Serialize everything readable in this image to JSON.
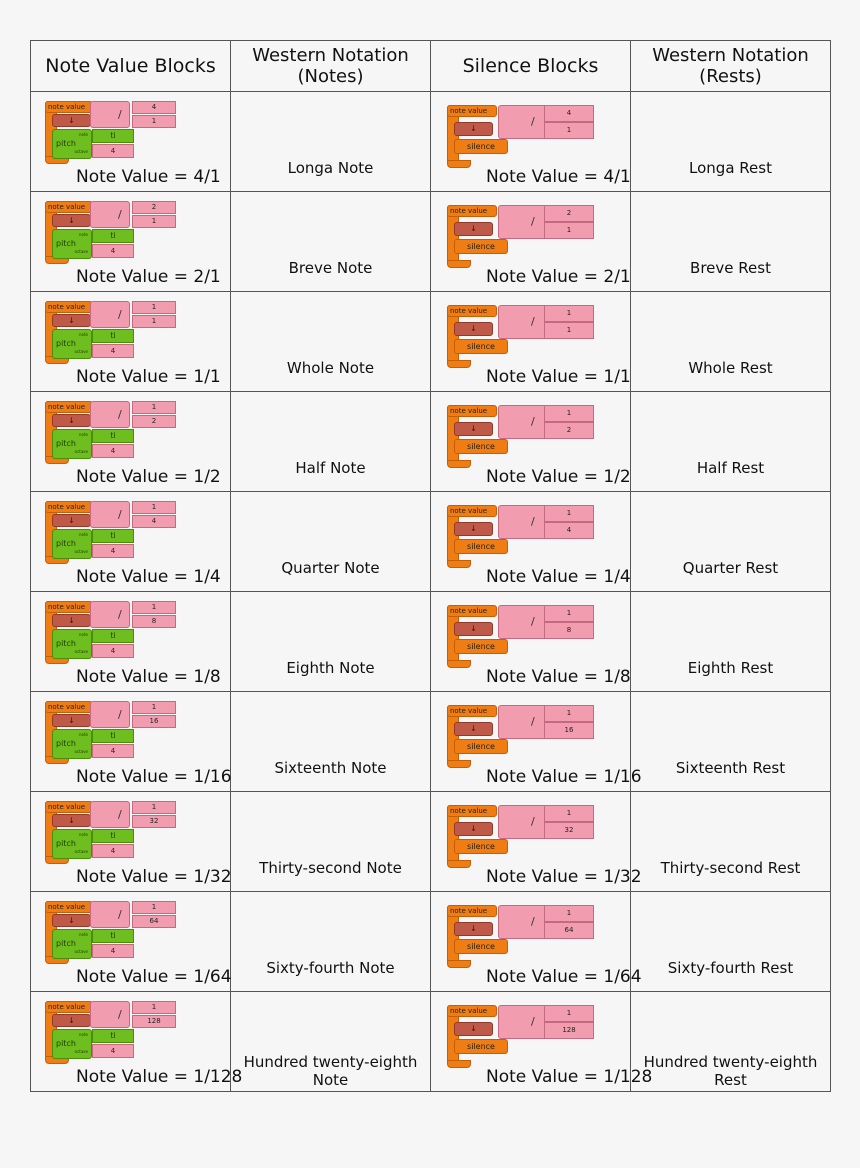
{
  "headers": {
    "note_blocks": "Note Value Blocks",
    "western_notes": "Western Notation (Notes)",
    "silence_blocks": "Silence Blocks",
    "western_rests": "Western Notation (Rests)"
  },
  "block_labels": {
    "note_value": "note value",
    "arrow": "↓",
    "divide": "/",
    "note": "note",
    "pitch": "pitch",
    "octave": "octave",
    "pitch_name": "ti",
    "octave_value": "4",
    "silence": "silence"
  },
  "rows": [
    {
      "num": "4",
      "den": "1",
      "caption": "Note Value = 4/1",
      "note_name": "Longa Note",
      "rest_name": "Longa Rest"
    },
    {
      "num": "2",
      "den": "1",
      "caption": "Note Value = 2/1",
      "note_name": "Breve Note",
      "rest_name": "Breve Rest"
    },
    {
      "num": "1",
      "den": "1",
      "caption": "Note Value = 1/1",
      "note_name": "Whole Note",
      "rest_name": "Whole Rest"
    },
    {
      "num": "1",
      "den": "2",
      "caption": "Note Value = 1/2",
      "note_name": "Half Note",
      "rest_name": "Half Rest"
    },
    {
      "num": "1",
      "den": "4",
      "caption": "Note Value = 1/4",
      "note_name": "Quarter Note",
      "rest_name": "Quarter Rest"
    },
    {
      "num": "1",
      "den": "8",
      "caption": "Note Value = 1/8",
      "note_name": "Eighth Note",
      "rest_name": "Eighth Rest"
    },
    {
      "num": "1",
      "den": "16",
      "caption": "Note Value = 1/16",
      "note_name": "Sixteenth Note",
      "rest_name": "Sixteenth Rest"
    },
    {
      "num": "1",
      "den": "32",
      "caption": "Note Value = 1/32",
      "note_name": "Thirty-second Note",
      "rest_name": "Thirty-second Rest"
    },
    {
      "num": "1",
      "den": "64",
      "caption": "Note Value = 1/64",
      "note_name": "Sixty-fourth Note",
      "rest_name": "Sixty-fourth Rest"
    },
    {
      "num": "1",
      "den": "128",
      "caption": "Note Value = 1/128",
      "note_name": "Hundred twenty-eighth Note",
      "rest_name": "Hundred twenty-eighth Rest"
    }
  ]
}
